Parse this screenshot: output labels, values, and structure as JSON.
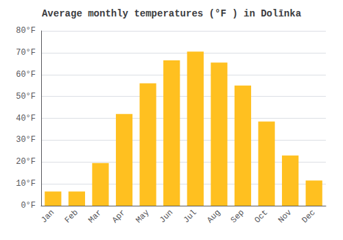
{
  "chart_data": {
    "type": "bar",
    "title": "Average monthly temperatures (°F ) in Dolīnka",
    "categories": [
      "Jan",
      "Feb",
      "Mar",
      "Apr",
      "May",
      "Jun",
      "Jul",
      "Aug",
      "Sep",
      "Oct",
      "Nov",
      "Dec"
    ],
    "values": [
      6.5,
      6.5,
      19.5,
      42.0,
      56.0,
      66.5,
      70.5,
      65.5,
      55.0,
      38.5,
      23.0,
      11.5
    ],
    "color": "#FFC020",
    "ylim": [
      0,
      80
    ],
    "yticks": [
      {
        "value": 0,
        "label": "0°F"
      },
      {
        "value": 10,
        "label": "10°F"
      },
      {
        "value": 20,
        "label": "20°F"
      },
      {
        "value": 30,
        "label": "30°F"
      },
      {
        "value": 40,
        "label": "40°F"
      },
      {
        "value": 50,
        "label": "50°F"
      },
      {
        "value": 60,
        "label": "60°F"
      },
      {
        "value": 70,
        "label": "70°F"
      },
      {
        "value": 80,
        "label": "80°F"
      }
    ],
    "grid": true
  }
}
